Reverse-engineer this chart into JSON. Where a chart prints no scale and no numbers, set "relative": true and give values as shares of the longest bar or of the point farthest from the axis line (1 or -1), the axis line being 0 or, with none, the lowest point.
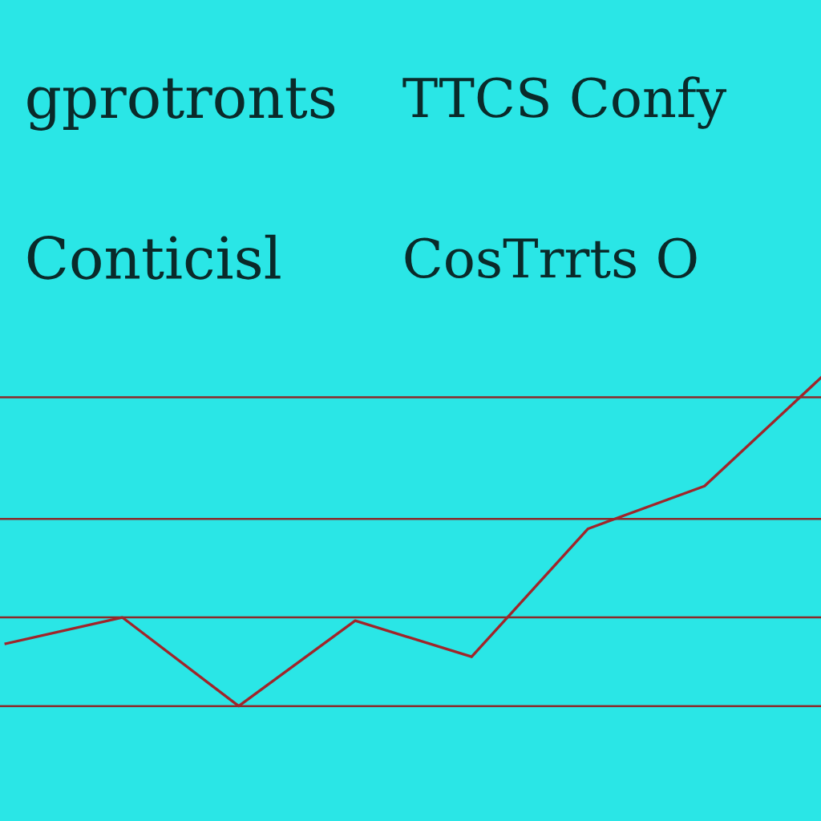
{
  "chart_data": {
    "type": "line",
    "relative": true,
    "annotations": [
      "gprotronts",
      "TTCS Confy",
      "Conticisl",
      "CosTrrts O"
    ],
    "categories": [
      null,
      null,
      null,
      null,
      null,
      null,
      null,
      null
    ],
    "series": [
      {
        "color": "#a0252a",
        "values": [
          0.19,
          0.27,
          0,
          0.26,
          0.15,
          0.54,
          0.67,
          1
        ]
      }
    ],
    "ref_lines": [
      {
        "axis": "y",
        "value": 0.94,
        "color": "#8a2a2a"
      },
      {
        "axis": "y",
        "value": 0.57,
        "color": "#8a2a2a"
      },
      {
        "axis": "y",
        "value": 0.27,
        "color": "#8a2a2a"
      },
      {
        "axis": "y",
        "value": 0,
        "color": "#8a2a2a"
      }
    ],
    "marker": "none",
    "line_style": "solid"
  }
}
